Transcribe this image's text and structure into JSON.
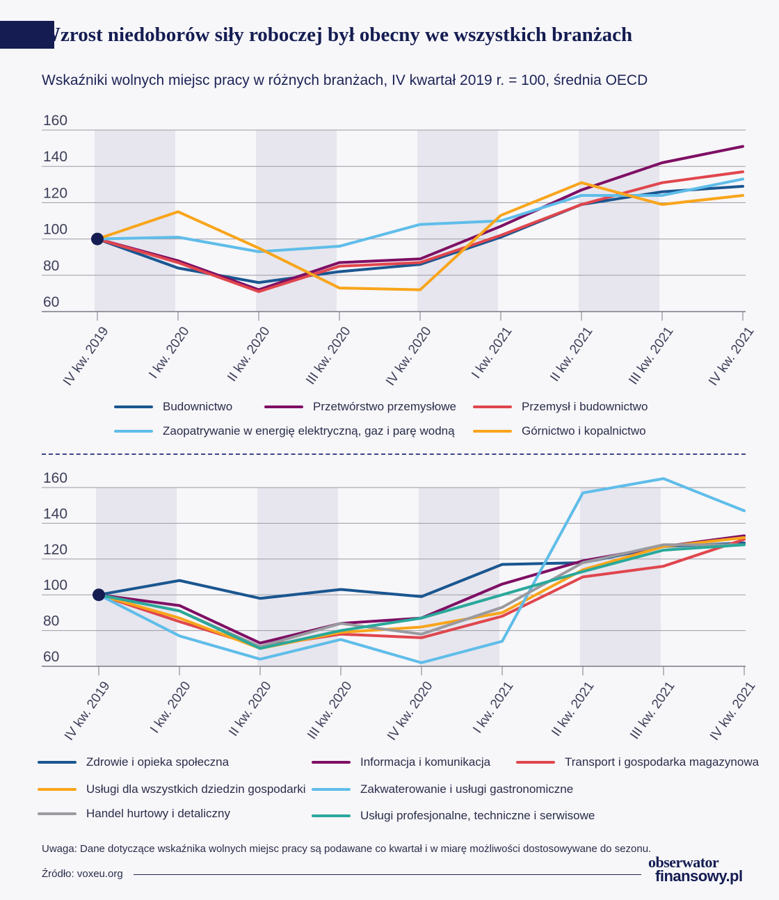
{
  "header": {
    "title": "Wzrost niedoborów siły roboczej był obecny we wszystkich branżach",
    "subtitle": "Wskaźniki wolnych miejsc pracy w różnych branżach, IV kwartał 2019 r. = 100, średnia OECD"
  },
  "footer": {
    "note": "Uwaga: Dane dotyczące wskaźnika wolnych miejsc pracy są podawane co kwartał i w miarę możliwości dostosowywane do sezonu.",
    "source": "Źródło: voxeu.org",
    "brand_line1": "obserwator",
    "brand_line2": "finansowy.pl"
  },
  "chart_data": [
    {
      "type": "line",
      "title": "",
      "xlabel": "",
      "ylabel": "",
      "x": [
        "IV kw. 2019",
        "I kw. 2020",
        "II kw. 2020",
        "III kw. 2020",
        "IV kw. 2020",
        "I kw. 2021",
        "II kw. 2021",
        "III kw. 2021",
        "IV kw. 2021"
      ],
      "ylim": [
        60,
        160
      ],
      "yticks": [
        60,
        80,
        100,
        120,
        140,
        160
      ],
      "grid": true,
      "legend": "bottom",
      "series": [
        {
          "name": "Budownictwo",
          "color": "#1a5690",
          "values": [
            100,
            84,
            76,
            82,
            86,
            101,
            119,
            126,
            129
          ]
        },
        {
          "name": "Przetwórstwo przemysłowe",
          "color": "#7e0f64",
          "values": [
            100,
            88,
            72,
            87,
            89,
            107,
            127,
            142,
            151
          ]
        },
        {
          "name": "Przemysł i budownictwo",
          "color": "#e0464d",
          "values": [
            100,
            87,
            71,
            85,
            87,
            102,
            119,
            131,
            137
          ]
        },
        {
          "name": "Zaopatrywanie w energię elektryczną, gaz i parę wodną",
          "color": "#5fbde9",
          "values": [
            100,
            101,
            93,
            96,
            108,
            110,
            124,
            124,
            133
          ]
        },
        {
          "name": "Górnictwo i kopalnictwo",
          "color": "#f8a51b",
          "values": [
            100,
            115,
            95,
            73,
            72,
            113,
            131,
            119,
            124
          ]
        }
      ]
    },
    {
      "type": "line",
      "title": "",
      "xlabel": "",
      "ylabel": "",
      "x": [
        "IV kw. 2019",
        "I kw. 2020",
        "II kw. 2020",
        "III kw. 2020",
        "IV kw. 2020",
        "I kw. 2021",
        "II kw. 2021",
        "III kw. 2021",
        "IV kw. 2021"
      ],
      "ylim": [
        60,
        160
      ],
      "yticks": [
        60,
        80,
        100,
        120,
        140,
        160
      ],
      "grid": true,
      "legend": "bottom",
      "series": [
        {
          "name": "Zdrowie i opieka społeczna",
          "color": "#1a5690",
          "values": [
            100,
            108,
            98,
            103,
            99,
            117,
            118,
            127,
            129
          ]
        },
        {
          "name": "Informacja i komunikacja",
          "color": "#7e0f64",
          "values": [
            100,
            94,
            73,
            84,
            87,
            106,
            119,
            127,
            133
          ]
        },
        {
          "name": "Transport i gospodarka magazynowa",
          "color": "#e0464d",
          "values": [
            100,
            85,
            71,
            78,
            76,
            88,
            110,
            116,
            131
          ]
        },
        {
          "name": "Usługi dla wszystkich dziedzin gospodarki",
          "color": "#f8a51b",
          "values": [
            100,
            87,
            70,
            79,
            82,
            90,
            114,
            127,
            132
          ]
        },
        {
          "name": "Zakwaterowanie i usługi gastronomiczne",
          "color": "#5fbde9",
          "values": [
            100,
            77,
            64,
            75,
            62,
            74,
            157,
            165,
            147
          ]
        },
        {
          "name": "Handel hurtowy i detaliczny",
          "color": "#9a9a9f",
          "values": [
            100,
            91,
            71,
            84,
            78,
            93,
            118,
            128,
            128
          ]
        },
        {
          "name": "Usługi profesjonalne, techniczne i serwisowe",
          "color": "#2aa89a",
          "values": [
            100,
            91,
            70,
            80,
            87,
            100,
            113,
            125,
            128
          ]
        }
      ]
    }
  ]
}
